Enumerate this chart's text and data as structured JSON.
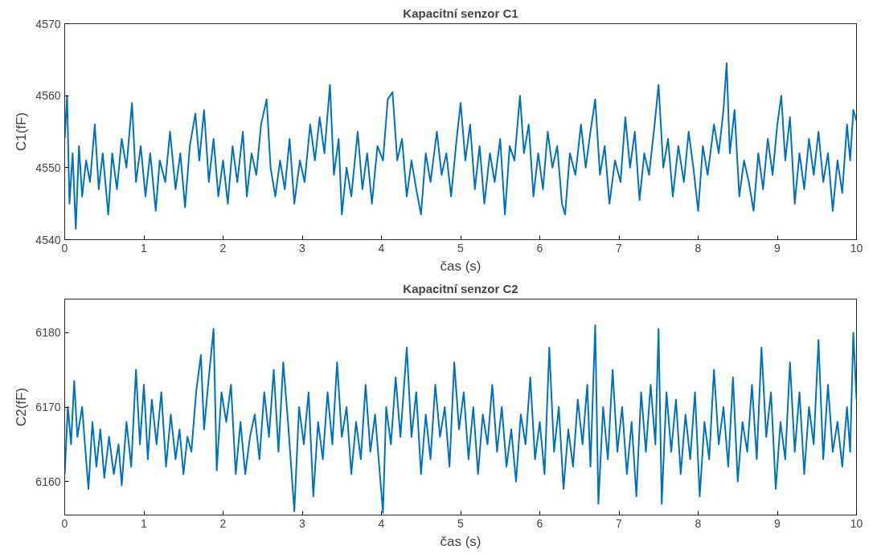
{
  "chart_data": [
    {
      "type": "line",
      "title": "Kapacitní senzor C1",
      "xlabel": "čas (s)",
      "ylabel": "C1(fF)",
      "xlim": [
        0,
        10
      ],
      "ylim": [
        4540,
        4570
      ],
      "xticks": [
        0,
        1,
        2,
        3,
        4,
        5,
        6,
        7,
        8,
        9,
        10
      ],
      "yticks": [
        4540,
        4550,
        4560,
        4570
      ],
      "x": [
        0,
        0.03,
        0.06,
        0.1,
        0.14,
        0.18,
        0.22,
        0.27,
        0.32,
        0.38,
        0.43,
        0.48,
        0.55,
        0.6,
        0.66,
        0.72,
        0.78,
        0.85,
        0.9,
        0.96,
        1.02,
        1.08,
        1.15,
        1.2,
        1.27,
        1.33,
        1.4,
        1.46,
        1.52,
        1.58,
        1.65,
        1.7,
        1.76,
        1.82,
        1.88,
        1.94,
        2.0,
        2.06,
        2.12,
        2.18,
        2.25,
        2.3,
        2.36,
        2.42,
        2.48,
        2.55,
        2.6,
        2.66,
        2.72,
        2.78,
        2.84,
        2.9,
        2.97,
        3.03,
        3.1,
        3.16,
        3.22,
        3.28,
        3.35,
        3.4,
        3.46,
        3.5,
        3.56,
        3.62,
        3.7,
        3.76,
        3.82,
        3.88,
        3.95,
        4.02,
        4.08,
        4.14,
        4.2,
        4.26,
        4.32,
        4.38,
        4.44,
        4.5,
        4.56,
        4.62,
        4.7,
        4.76,
        4.82,
        4.88,
        4.95,
        5.0,
        5.06,
        5.12,
        5.18,
        5.24,
        5.3,
        5.37,
        5.43,
        5.5,
        5.56,
        5.62,
        5.68,
        5.75,
        5.8,
        5.86,
        5.92,
        5.98,
        6.04,
        6.1,
        6.16,
        6.22,
        6.28,
        6.32,
        6.38,
        6.45,
        6.52,
        6.58,
        6.64,
        6.7,
        6.76,
        6.82,
        6.88,
        6.95,
        7.02,
        7.08,
        7.14,
        7.2,
        7.26,
        7.32,
        7.38,
        7.45,
        7.5,
        7.56,
        7.62,
        7.68,
        7.75,
        7.82,
        7.88,
        7.94,
        8.0,
        8.06,
        8.12,
        8.2,
        8.26,
        8.32,
        8.36,
        8.4,
        8.46,
        8.52,
        8.58,
        8.64,
        8.7,
        8.76,
        8.82,
        8.88,
        8.94,
        9.0,
        9.05,
        9.1,
        9.16,
        9.22,
        9.28,
        9.34,
        9.4,
        9.46,
        9.52,
        9.58,
        9.64,
        9.7,
        9.76,
        9.82,
        9.88,
        9.92,
        9.96,
        10.0
      ],
      "series": [
        {
          "color": "#0072bd",
          "values": [
            4554,
            4560,
            4545,
            4552,
            4541.5,
            4553,
            4546,
            4551,
            4548,
            4556,
            4547,
            4552,
            4543.5,
            4552,
            4547,
            4554,
            4550,
            4559,
            4548,
            4553,
            4546,
            4552,
            4544,
            4551,
            4548,
            4555,
            4547,
            4552,
            4544.5,
            4553,
            4557.5,
            4551,
            4558,
            4548,
            4554,
            4546,
            4551,
            4545,
            4553,
            4548,
            4555,
            4546,
            4552,
            4549,
            4556,
            4559.5,
            4550,
            4546,
            4551,
            4547,
            4554,
            4545,
            4551,
            4548,
            4556,
            4551,
            4557,
            4552,
            4561.5,
            4549,
            4554,
            4543.5,
            4550,
            4546,
            4555,
            4547,
            4552,
            4545,
            4553,
            4551,
            4559.5,
            4560.5,
            4551,
            4554,
            4546,
            4551,
            4547,
            4543.5,
            4552,
            4548,
            4555,
            4549,
            4552,
            4546,
            4554,
            4559,
            4551,
            4556,
            4547,
            4553,
            4545,
            4552,
            4548,
            4554,
            4543.5,
            4553,
            4551,
            4560,
            4552,
            4556,
            4546,
            4552,
            4547,
            4555,
            4550,
            4553,
            4545,
            4543.5,
            4552,
            4549,
            4556,
            4550,
            4555,
            4559.5,
            4549,
            4553,
            4545,
            4551,
            4548,
            4557,
            4550,
            4555,
            4545.5,
            4552,
            4549,
            4556,
            4561.5,
            4550,
            4554,
            4546,
            4553,
            4548,
            4555,
            4550,
            4544,
            4553,
            4549,
            4556,
            4552,
            4558,
            4564.5,
            4552,
            4558,
            4546,
            4551,
            4548,
            4544,
            4552,
            4547,
            4554,
            4549,
            4556,
            4560,
            4551,
            4557,
            4545,
            4552,
            4547,
            4554,
            4549,
            4555,
            4548,
            4552,
            4544,
            4551,
            4546.5,
            4556,
            4551,
            4558,
            4556.5
          ]
        }
      ]
    },
    {
      "type": "line",
      "title": "Kapacitní senzor C2",
      "xlabel": "čas (s)",
      "ylabel": "C2(fF)",
      "xlim": [
        0,
        10
      ],
      "ylim": [
        6155.5,
        6184.5
      ],
      "xticks": [
        0,
        1,
        2,
        3,
        4,
        5,
        6,
        7,
        8,
        9,
        10
      ],
      "yticks": [
        6160,
        6170,
        6180
      ],
      "x": [
        0,
        0.04,
        0.08,
        0.12,
        0.16,
        0.22,
        0.27,
        0.3,
        0.35,
        0.4,
        0.45,
        0.5,
        0.56,
        0.62,
        0.68,
        0.72,
        0.78,
        0.84,
        0.9,
        0.95,
        1.0,
        1.05,
        1.1,
        1.16,
        1.22,
        1.28,
        1.34,
        1.4,
        1.45,
        1.5,
        1.55,
        1.6,
        1.66,
        1.72,
        1.76,
        1.82,
        1.88,
        1.92,
        1.98,
        2.04,
        2.1,
        2.16,
        2.22,
        2.28,
        2.34,
        2.4,
        2.46,
        2.52,
        2.58,
        2.64,
        2.7,
        2.76,
        2.82,
        2.88,
        2.9,
        2.96,
        3.02,
        3.08,
        3.14,
        3.2,
        3.26,
        3.32,
        3.38,
        3.44,
        3.5,
        3.56,
        3.62,
        3.68,
        3.74,
        3.8,
        3.86,
        3.92,
        3.98,
        4.02,
        4.06,
        4.12,
        4.18,
        4.24,
        4.32,
        4.38,
        4.44,
        4.5,
        4.56,
        4.62,
        4.68,
        4.74,
        4.8,
        4.86,
        4.92,
        4.98,
        5.04,
        5.1,
        5.16,
        5.22,
        5.28,
        5.34,
        5.4,
        5.46,
        5.52,
        5.58,
        5.64,
        5.7,
        5.76,
        5.82,
        5.88,
        5.94,
        6.0,
        6.06,
        6.12,
        6.18,
        6.24,
        6.3,
        6.36,
        6.42,
        6.48,
        6.54,
        6.6,
        6.64,
        6.7,
        6.74,
        6.8,
        6.86,
        6.92,
        6.98,
        7.04,
        7.1,
        7.16,
        7.22,
        7.28,
        7.34,
        7.4,
        7.46,
        7.5,
        7.54,
        7.6,
        7.66,
        7.72,
        7.78,
        7.84,
        7.9,
        7.96,
        8.02,
        8.08,
        8.14,
        8.2,
        8.26,
        8.32,
        8.38,
        8.44,
        8.5,
        8.56,
        8.62,
        8.68,
        8.74,
        8.8,
        8.86,
        8.92,
        8.98,
        9.04,
        9.1,
        9.16,
        9.22,
        9.28,
        9.34,
        9.4,
        9.46,
        9.52,
        9.58,
        9.64,
        9.7,
        9.76,
        9.82,
        9.88,
        9.92,
        9.96,
        10.0
      ],
      "series": [
        {
          "color": "#0072bd",
          "values": [
            6161,
            6170,
            6165,
            6173.5,
            6166,
            6170,
            6163,
            6159,
            6168,
            6162,
            6167,
            6160.5,
            6166,
            6161,
            6165,
            6159.5,
            6168,
            6162,
            6175,
            6165,
            6173,
            6163,
            6171,
            6165,
            6172,
            6162,
            6169,
            6163,
            6167,
            6161,
            6166,
            6164,
            6172,
            6177,
            6167,
            6174,
            6180.5,
            6161.5,
            6172,
            6168,
            6173,
            6161,
            6168,
            6161,
            6166,
            6169,
            6163,
            6172,
            6166,
            6175,
            6164,
            6176,
            6168,
            6159,
            6156,
            6170,
            6165,
            6172,
            6158,
            6168,
            6163,
            6172,
            6165,
            6176,
            6166,
            6170,
            6161,
            6168,
            6163,
            6173,
            6164,
            6169,
            6161,
            6155.8,
            6170,
            6165,
            6174,
            6166,
            6178,
            6166,
            6172,
            6161,
            6169,
            6163,
            6173,
            6166,
            6170,
            6162,
            6176,
            6167,
            6172,
            6163,
            6170,
            6161,
            6169,
            6165,
            6173,
            6164,
            6170,
            6162,
            6167,
            6160,
            6169,
            6165,
            6174,
            6163,
            6168,
            6161,
            6178,
            6164,
            6170,
            6159,
            6167,
            6162,
            6171,
            6165,
            6173,
            6162,
            6181,
            6157,
            6170,
            6163,
            6175,
            6164,
            6170,
            6161,
            6168,
            6158,
            6172,
            6164,
            6173,
            6165,
            6180.5,
            6157,
            6172,
            6164,
            6171,
            6161,
            6169,
            6163,
            6172,
            6158,
            6168,
            6163,
            6175,
            6165,
            6170,
            6162,
            6174,
            6160,
            6168,
            6164,
            6173,
            6163,
            6178,
            6166,
            6172,
            6159,
            6168,
            6163,
            6176,
            6164,
            6172,
            6161,
            6170,
            6165,
            6179,
            6163,
            6173,
            6164,
            6168,
            6162,
            6170,
            6164,
            6180,
            6171
          ]
        }
      ]
    }
  ]
}
